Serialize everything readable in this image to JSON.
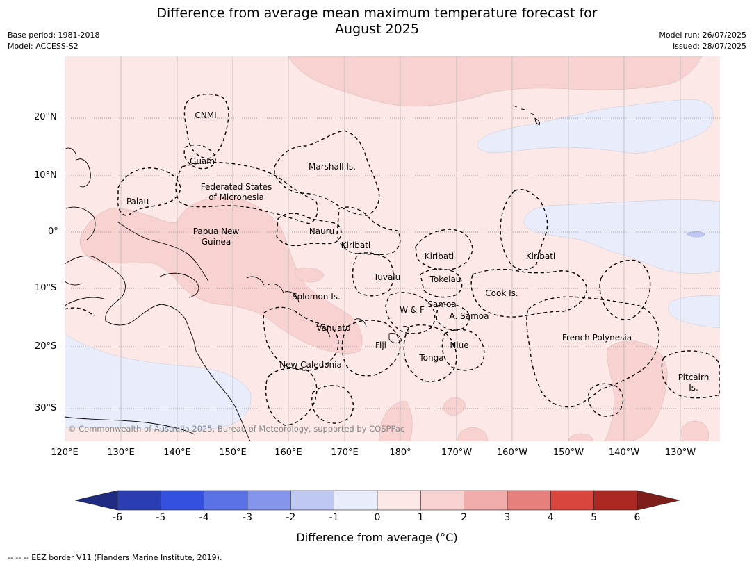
{
  "header": {
    "title_line1": "Difference from average mean maximum temperature forecast for",
    "title_line2": "August 2025",
    "base_period": "Base period: 1981-2018",
    "model": "Model: ACCESS-S2",
    "model_run": "Model run: 26/07/2025",
    "issued": "Issued: 28/07/2025"
  },
  "map": {
    "lat_labels": [
      "20°N",
      "10°N",
      "0°",
      "10°S",
      "20°S",
      "30°S"
    ],
    "lon_labels": [
      "120°E",
      "130°E",
      "140°E",
      "150°E",
      "160°E",
      "170°E",
      "180°",
      "170°W",
      "160°W",
      "150°W",
      "140°W",
      "130°W"
    ],
    "regions": {
      "cnmi": "CNMI",
      "guam": "Guam",
      "marshall": "Marshall Is.",
      "fsm_1": "Federated States",
      "fsm_2": "of Micronesia",
      "palau": "Palau",
      "png_1": "Papua New",
      "png_2": "Guinea",
      "nauru": "Nauru",
      "kiribati_w": "Kiribati",
      "kiribati_c": "Kiribati",
      "kiribati_e": "Kiribati",
      "tuvalu": "Tuvalu",
      "tokelau": "Tokelau",
      "solomon": "Solomon Is.",
      "samoa": "Samoa",
      "wf": "W & F",
      "asamoa": "A. Samoa",
      "cook": "Cook Is.",
      "vanuatu": "Vanuatu",
      "fiji": "Fiji",
      "niue": "Niue",
      "tonga": "Tonga",
      "newcal": "New Caledonia",
      "frenchpoly": "French Polynesia",
      "pitcairn_1": "Pitcairn",
      "pitcairn_2": "Is."
    },
    "copyright": "© Commonwealth of Australia 2025, Bureau of Meteorology, supported by COSPPac"
  },
  "colorbar": {
    "ticks": [
      "-6",
      "-5",
      "-4",
      "-3",
      "-2",
      "-1",
      "0",
      "1",
      "2",
      "3",
      "4",
      "5",
      "6"
    ],
    "colors": [
      "#2a3eb1",
      "#3350df",
      "#5a72e6",
      "#8695ec",
      "#bfc7f3",
      "#e8ecfb",
      "#fce9e7",
      "#f7d2d0",
      "#efaca9",
      "#e6807c",
      "#d9463e",
      "#aa2722"
    ],
    "low_extend_color": "#1f2b80",
    "high_extend_color": "#7d1e1a",
    "label": "Difference from average (°C)"
  },
  "footer": {
    "note": "--  --  -- EEZ border V11 (Flanders Marine Institute, 2019)."
  }
}
